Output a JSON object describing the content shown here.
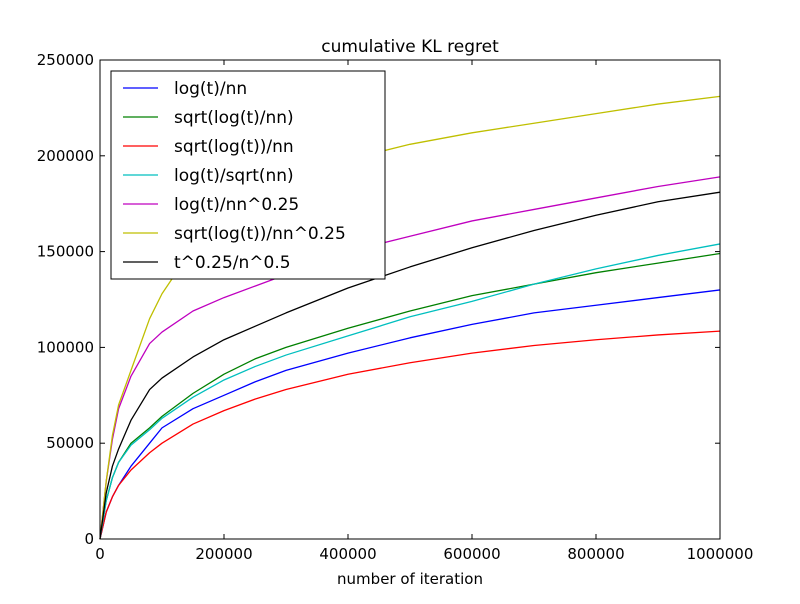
{
  "chart_data": {
    "type": "line",
    "title": "cumulative KL regret",
    "xlabel": "number of iteration",
    "ylabel": "",
    "xlim": [
      0,
      1000000
    ],
    "ylim": [
      0,
      250000
    ],
    "x_ticks": [
      0,
      200000,
      400000,
      600000,
      800000,
      1000000
    ],
    "x_tick_labels": [
      "0",
      "200000",
      "400000",
      "600000",
      "800000",
      "1000000"
    ],
    "y_ticks": [
      0,
      50000,
      100000,
      150000,
      200000,
      250000
    ],
    "y_tick_labels": [
      "0",
      "50000",
      "100000",
      "150000",
      "200000",
      "250000"
    ],
    "grid": false,
    "legend": "top-left",
    "series": [
      {
        "name": "log(t)/nn",
        "color": "#0000ff",
        "x": [
          0,
          10000,
          20000,
          30000,
          50000,
          80000,
          100000,
          150000,
          200000,
          250000,
          300000,
          400000,
          500000,
          600000,
          700000,
          800000,
          900000,
          1000000
        ],
        "y": [
          0,
          14000,
          22000,
          28000,
          38000,
          50000,
          58000,
          68000,
          75000,
          82000,
          88000,
          97000,
          105000,
          112000,
          118000,
          122000,
          126000,
          130000
        ]
      },
      {
        "name": "sqrt(log(t)/nn)",
        "color": "#008000",
        "x": [
          0,
          10000,
          20000,
          30000,
          50000,
          80000,
          100000,
          150000,
          200000,
          250000,
          300000,
          400000,
          500000,
          600000,
          700000,
          800000,
          900000,
          1000000
        ],
        "y": [
          0,
          20000,
          32000,
          40000,
          50000,
          58000,
          64000,
          76000,
          86000,
          94000,
          100000,
          110000,
          119000,
          127000,
          133000,
          139000,
          144000,
          149000
        ]
      },
      {
        "name": "sqrt(log(t))/nn",
        "color": "#ff0000",
        "x": [
          0,
          10000,
          20000,
          30000,
          50000,
          80000,
          100000,
          150000,
          200000,
          250000,
          300000,
          400000,
          500000,
          600000,
          700000,
          800000,
          900000,
          1000000
        ],
        "y": [
          0,
          14000,
          22000,
          28000,
          36000,
          45000,
          50000,
          60000,
          67000,
          73000,
          78000,
          86000,
          92000,
          97000,
          101000,
          104000,
          106500,
          108500
        ]
      },
      {
        "name": "log(t)/sqrt(nn)",
        "color": "#00bfbf",
        "x": [
          0,
          10000,
          20000,
          30000,
          50000,
          80000,
          100000,
          150000,
          200000,
          250000,
          300000,
          400000,
          500000,
          600000,
          700000,
          800000,
          900000,
          1000000
        ],
        "y": [
          0,
          20000,
          32000,
          40000,
          49000,
          57000,
          63000,
          74000,
          83000,
          90000,
          96000,
          106000,
          116000,
          124000,
          133000,
          141000,
          148000,
          154000
        ]
      },
      {
        "name": "log(t)/nn^0.25",
        "color": "#bf00bf",
        "x": [
          0,
          10000,
          20000,
          30000,
          50000,
          80000,
          100000,
          150000,
          200000,
          250000,
          300000,
          400000,
          500000,
          600000,
          700000,
          800000,
          900000,
          1000000
        ],
        "y": [
          0,
          30000,
          52000,
          68000,
          85000,
          102000,
          108000,
          119000,
          126000,
          132000,
          138000,
          150000,
          158000,
          166000,
          172000,
          178000,
          184000,
          189000
        ]
      },
      {
        "name": "sqrt(log(t))/nn^0.25",
        "color": "#bfbf00",
        "x": [
          0,
          10000,
          20000,
          30000,
          50000,
          80000,
          100000,
          150000,
          200000,
          250000,
          300000,
          400000,
          500000,
          600000,
          700000,
          800000,
          900000,
          1000000
        ],
        "y": [
          0,
          30000,
          54000,
          70000,
          88000,
          115000,
          128000,
          152000,
          165000,
          175000,
          183000,
          198000,
          206000,
          212000,
          217000,
          222000,
          227000,
          231000
        ]
      },
      {
        "name": "t^0.25/n^0.5",
        "color": "#000000",
        "x": [
          0,
          10000,
          20000,
          30000,
          50000,
          80000,
          100000,
          150000,
          200000,
          250000,
          300000,
          400000,
          500000,
          600000,
          700000,
          800000,
          900000,
          1000000
        ],
        "y": [
          0,
          24000,
          38000,
          47000,
          62000,
          78000,
          84000,
          95000,
          104000,
          111000,
          118000,
          131000,
          142000,
          152000,
          161000,
          169000,
          176000,
          181000
        ]
      }
    ]
  }
}
